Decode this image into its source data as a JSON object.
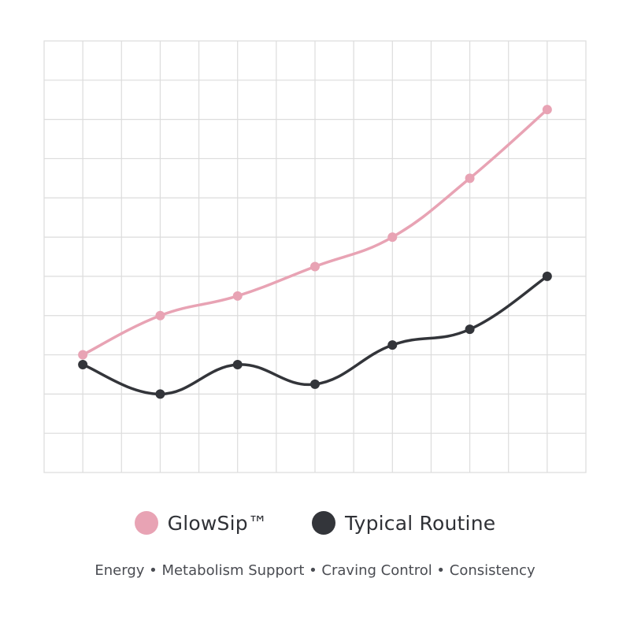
{
  "chart_data": {
    "type": "line",
    "x": [
      1,
      2,
      3,
      4,
      5,
      6,
      7
    ],
    "xlim": [
      0.5,
      7.5
    ],
    "ylim": [
      0,
      11
    ],
    "grid": true,
    "legend_position": "bottom",
    "series": [
      {
        "name": "GlowSip™",
        "color": "#e8a3b4",
        "values": [
          3.0,
          4.0,
          4.5,
          5.25,
          6.0,
          7.5,
          9.25
        ]
      },
      {
        "name": "Typical Routine",
        "color": "#33353a",
        "values": [
          2.75,
          2.0,
          2.75,
          2.25,
          3.25,
          3.65,
          5.0
        ]
      }
    ]
  },
  "caption": "Energy • Metabolism Support • Craving Control • Consistency"
}
